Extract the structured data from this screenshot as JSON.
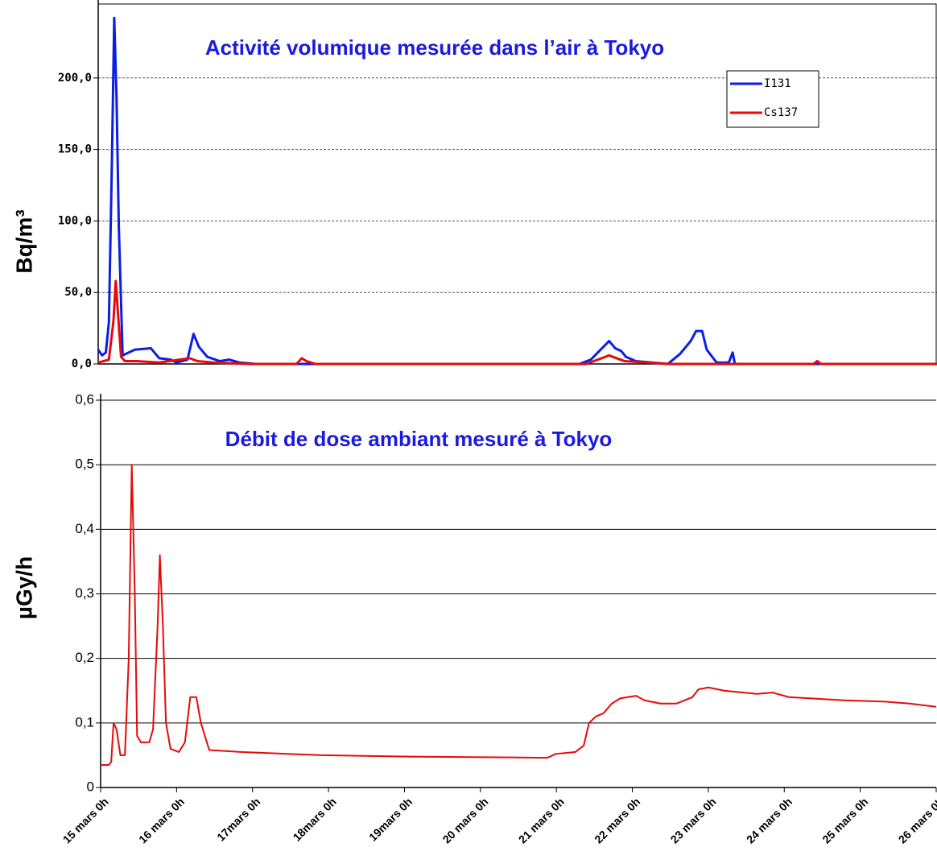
{
  "chart_data": [
    {
      "type": "line",
      "title": "Activité volumique mesurée dans l’air à Tokyo",
      "y_label": "Bq/m³",
      "xlim": [
        0,
        11
      ],
      "ylim": [
        0,
        250
      ],
      "yticks": [
        {
          "value": 0,
          "label": "0,0"
        },
        {
          "value": 50,
          "label": "50,0"
        },
        {
          "value": 100,
          "label": "100,0"
        },
        {
          "value": 150,
          "label": "150,0"
        },
        {
          "value": 200,
          "label": "200,0"
        }
      ],
      "grid": "dashed",
      "legend": "upper right",
      "series": [
        {
          "name": "I131",
          "color": "#0a1ee6",
          "x": [
            0,
            0.05,
            0.1,
            0.14,
            0.18,
            0.21,
            0.24,
            0.27,
            0.32,
            0.48,
            0.69,
            0.8,
            0.95,
            1.03,
            1.17,
            1.25,
            1.32,
            1.43,
            1.59,
            1.72,
            1.85,
            2.07,
            6.31,
            6.46,
            6.57,
            6.7,
            6.78,
            6.86,
            6.92,
            7.05,
            7.26,
            7.47,
            7.63,
            7.77,
            7.84,
            7.92,
            7.98,
            8.11,
            8.27,
            8.32,
            8.35,
            8.43,
            11
          ],
          "values": [
            10,
            6,
            8,
            29,
            142,
            242,
            187,
            97,
            6,
            10,
            11,
            4,
            3,
            1,
            3,
            21,
            12,
            5,
            2,
            3,
            1,
            0,
            0,
            3,
            9,
            16,
            11,
            9,
            5,
            2,
            1,
            0,
            7,
            16,
            23,
            23,
            10,
            1,
            1,
            8,
            0,
            0,
            0
          ]
        },
        {
          "name": "Cs137",
          "color": "#e60a0a",
          "x": [
            0,
            0.14,
            0.2,
            0.23,
            0.26,
            0.3,
            0.35,
            0.5,
            0.8,
            1.2,
            1.3,
            1.5,
            2.0,
            2.6,
            2.67,
            2.73,
            2.85,
            6.4,
            6.7,
            6.9,
            7.2,
            7.5,
            9.38,
            9.43,
            9.48,
            11
          ],
          "values": [
            1,
            3,
            30,
            58,
            35,
            5,
            2,
            2,
            1,
            4,
            2,
            1,
            0,
            0,
            4,
            2,
            0,
            0,
            6,
            2,
            1,
            0,
            0,
            2,
            0,
            0
          ]
        }
      ]
    },
    {
      "type": "line",
      "title": "Débit de dose ambiant mesuré à Tokyo",
      "y_label": "µGy/h",
      "xlim": [
        0,
        11
      ],
      "xticks": [
        {
          "value": 0,
          "label": "15 mars 0h"
        },
        {
          "value": 1,
          "label": "16 mars 0h"
        },
        {
          "value": 2,
          "label": "17mars 0h"
        },
        {
          "value": 3,
          "label": "18mars 0h"
        },
        {
          "value": 4,
          "label": "19mars 0h"
        },
        {
          "value": 5,
          "label": "20 mars 0h"
        },
        {
          "value": 6,
          "label": "21 mars 0h"
        },
        {
          "value": 7,
          "label": "22 mars 0h"
        },
        {
          "value": 8,
          "label": "23 mars 0h"
        },
        {
          "value": 9,
          "label": "24 mars 0h"
        },
        {
          "value": 10,
          "label": "25 mars 0h"
        },
        {
          "value": 11,
          "label": "26 mars 0h"
        }
      ],
      "ylim": [
        0,
        0.6
      ],
      "yticks": [
        0,
        {
          "value": 0.1,
          "label": "0,1"
        },
        {
          "value": 0.2,
          "label": "0,2"
        },
        {
          "value": 0.3,
          "label": "0,3"
        },
        {
          "value": 0.4,
          "label": "0,4"
        },
        {
          "value": 0.5,
          "label": "0,5"
        },
        {
          "value": 0.6,
          "label": "0,6"
        }
      ],
      "grid": "solid",
      "series": [
        {
          "name": "Débit de dose",
          "color": "#e60a0a",
          "x": [
            0,
            0.11,
            0.14,
            0.17,
            0.21,
            0.26,
            0.32,
            0.37,
            0.41,
            0.45,
            0.48,
            0.53,
            0.64,
            0.69,
            0.75,
            0.78,
            0.82,
            0.86,
            0.92,
            1.03,
            1.11,
            1.18,
            1.26,
            1.32,
            1.43,
            1.85,
            2.91,
            3.97,
            5.03,
            5.88,
            5.99,
            6.25,
            6.36,
            6.43,
            6.52,
            6.62,
            6.73,
            6.84,
            6.94,
            7.05,
            7.16,
            7.37,
            7.58,
            7.79,
            7.87,
            8.0,
            8.21,
            8.64,
            8.85,
            9.06,
            9.8,
            10.33,
            10.65,
            11
          ],
          "values": [
            0.035,
            0.035,
            0.04,
            0.1,
            0.09,
            0.05,
            0.05,
            0.2,
            0.5,
            0.3,
            0.08,
            0.07,
            0.07,
            0.09,
            0.25,
            0.36,
            0.25,
            0.1,
            0.06,
            0.055,
            0.07,
            0.14,
            0.14,
            0.1,
            0.058,
            0.055,
            0.05,
            0.048,
            0.047,
            0.046,
            0.052,
            0.055,
            0.065,
            0.1,
            0.11,
            0.115,
            0.13,
            0.138,
            0.14,
            0.142,
            0.135,
            0.13,
            0.13,
            0.14,
            0.152,
            0.155,
            0.15,
            0.145,
            0.147,
            0.14,
            0.135,
            0.133,
            0.13,
            0.125
          ]
        }
      ]
    }
  ]
}
